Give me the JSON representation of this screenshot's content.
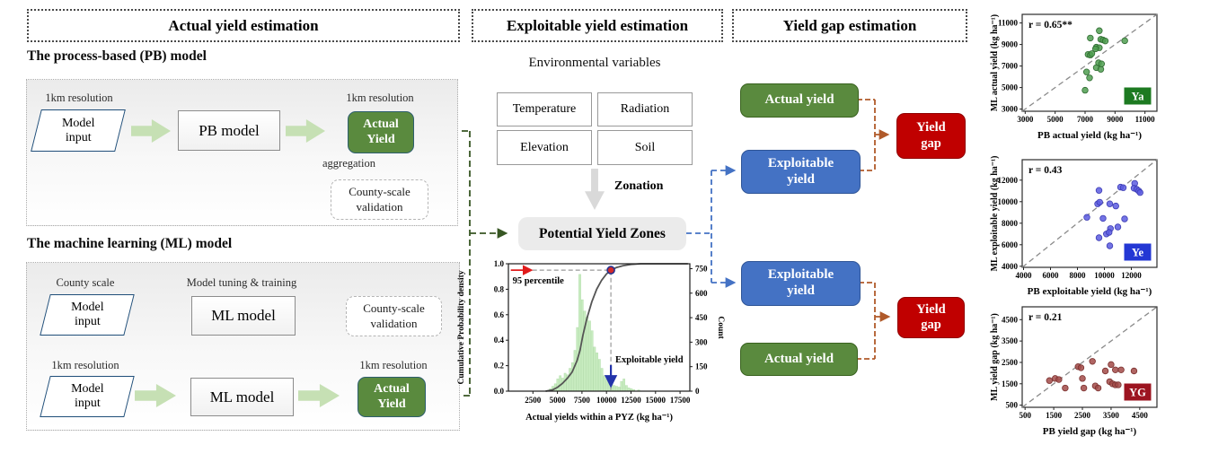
{
  "palette": {
    "green_box": "#5a8a3e",
    "green_box_border_left": "#2e5f6e",
    "green_box_border_right": "#39621f",
    "blue_box": "#4472c4",
    "blue_box_border": "#2f5597",
    "red_box": "#c00000",
    "red_box_border": "#900000",
    "flow_arrow": "#c6e0b4",
    "dash_green": "#375623",
    "dash_blue": "#4472c4",
    "dash_brown": "#b05a2a",
    "gray_arrow": "#808080"
  },
  "headers": {
    "actual": "Actual yield estimation",
    "exploitable": "Exploitable yield estimation",
    "yield_gap": "Yield gap estimation"
  },
  "pb": {
    "heading": "The process-based (PB) model",
    "input_tag": "1km resolution",
    "input_line1": "Model",
    "input_line2": "input",
    "model": "PB model",
    "output_tag": "1km resolution",
    "output_line1": "Actual",
    "output_line2": "Yield",
    "aggregation_label": "aggregation",
    "validation_line1": "County-scale",
    "validation_line2": "validation"
  },
  "ml": {
    "heading": "The machine learning (ML) model",
    "row1_input_tag": "County scale",
    "input_line1": "Model",
    "input_line2": "input",
    "row1_model_tag": "Model tuning & training",
    "model1": "ML model",
    "validation_line1": "County-scale",
    "validation_line2": "validation",
    "row2_input_tag": "1km resolution",
    "model2": "ML model",
    "output_tag": "1km resolution",
    "output_line1": "Actual",
    "output_line2": "Yield"
  },
  "env": {
    "title": "Environmental variables",
    "boxes": [
      "Temperature",
      "Radiation",
      "Elevation",
      "Soil"
    ],
    "zonation": "Zonation",
    "pyz": "Potential Yield Zones"
  },
  "gap": {
    "g1_top": "Actual yield",
    "g1_bottom_line1": "Exploitable",
    "g1_bottom_line2": "yield",
    "g1_result_line1": "Yield",
    "g1_result_line2": "gap",
    "g2_top_line1": "Exploitable",
    "g2_top_line2": "yield",
    "g2_bottom": "Actual yield",
    "g2_result_line1": "Yield",
    "g2_result_line2": "gap"
  },
  "chart_data": [
    {
      "type": "histogram_cdf",
      "xlabel": "Actual yields within a PYZ (kg ha⁻¹)",
      "ylabel_left": "Cumulative Probability density",
      "ylabel_right": "Count",
      "xlim": [
        0,
        18500
      ],
      "xticks": [
        2500,
        5000,
        7500,
        10000,
        12500,
        15000,
        17500
      ],
      "ylim_left": [
        0,
        1.0
      ],
      "yticks_left": [
        "0.0",
        "0.2",
        "0.4",
        "0.6",
        "0.8",
        "1.0"
      ],
      "ylim_right": [
        0,
        780
      ],
      "yticks_right": [
        0,
        150,
        300,
        450,
        600,
        750
      ],
      "bin_width": 250,
      "bar_color": "#c8ecc0",
      "cdf_color": "#555555",
      "bars": [
        [
          4300,
          15
        ],
        [
          4550,
          30
        ],
        [
          4800,
          45
        ],
        [
          5050,
          75
        ],
        [
          5300,
          95
        ],
        [
          5550,
          80
        ],
        [
          5800,
          110
        ],
        [
          6050,
          100
        ],
        [
          6300,
          140
        ],
        [
          6550,
          175
        ],
        [
          6800,
          250
        ],
        [
          7050,
          390
        ],
        [
          7300,
          715
        ],
        [
          7550,
          560
        ],
        [
          7800,
          490
        ],
        [
          8050,
          455
        ],
        [
          8300,
          430
        ],
        [
          8550,
          370
        ],
        [
          8800,
          270
        ],
        [
          9050,
          235
        ],
        [
          9300,
          195
        ],
        [
          9550,
          140
        ],
        [
          9800,
          95
        ],
        [
          10050,
          75
        ],
        [
          10300,
          60
        ],
        [
          10550,
          45
        ],
        [
          10800,
          35
        ],
        [
          11050,
          30
        ],
        [
          11300,
          25
        ],
        [
          11550,
          60
        ],
        [
          11800,
          75
        ],
        [
          12050,
          35
        ],
        [
          12300,
          20
        ],
        [
          12550,
          15
        ],
        [
          12800,
          10
        ],
        [
          13300,
          8
        ]
      ],
      "cdf": [
        [
          3800,
          0
        ],
        [
          4500,
          0.01
        ],
        [
          5000,
          0.03
        ],
        [
          5500,
          0.06
        ],
        [
          6000,
          0.1
        ],
        [
          6500,
          0.15
        ],
        [
          7000,
          0.24
        ],
        [
          7300,
          0.32
        ],
        [
          7600,
          0.44
        ],
        [
          8000,
          0.57
        ],
        [
          8500,
          0.7
        ],
        [
          9000,
          0.8
        ],
        [
          9500,
          0.87
        ],
        [
          10000,
          0.92
        ],
        [
          10450,
          0.95
        ],
        [
          11000,
          0.97
        ],
        [
          11700,
          0.985
        ],
        [
          12500,
          0.995
        ],
        [
          13500,
          1.0
        ],
        [
          18300,
          1.0
        ]
      ],
      "annotations": {
        "percentile_text": "95 percentile",
        "percentile_y": 0.95,
        "exploitable_text": "Exploitable yield",
        "exploitable_x": 10450,
        "red": "#e01b1b",
        "blue": "#2233aa",
        "marker_fill": "#d42a2a",
        "marker_ring": "#24318f"
      }
    },
    {
      "type": "scatter",
      "r_label": "r = 0.65**",
      "badge": "Ya",
      "badge_color": "#1d7a21",
      "dot_fill": "#4f9d50",
      "dot_stroke": "#2f6b31",
      "xlabel": "PB actual yield (kg ha⁻¹)",
      "ylabel": "ML actual yield (kg ha⁻¹)",
      "lim": [
        2800,
        11800
      ],
      "ticks": [
        3000,
        5000,
        7000,
        9000,
        11000
      ],
      "points": [
        [
          7000,
          4750
        ],
        [
          7300,
          5900
        ],
        [
          7100,
          6450
        ],
        [
          7750,
          6850
        ],
        [
          8050,
          6700
        ],
        [
          7900,
          7300
        ],
        [
          8100,
          7200
        ],
        [
          7200,
          8080
        ],
        [
          7350,
          8020
        ],
        [
          7450,
          8150
        ],
        [
          7750,
          8750
        ],
        [
          7950,
          8700
        ],
        [
          7700,
          8600
        ],
        [
          7350,
          9600
        ],
        [
          8050,
          9480
        ],
        [
          8200,
          9420
        ],
        [
          8350,
          9330
        ],
        [
          9650,
          9350
        ],
        [
          7950,
          10280
        ]
      ]
    },
    {
      "type": "scatter",
      "r_label": "r = 0.43",
      "badge": "Ye",
      "badge_color": "#2337d4",
      "dot_fill": "#5c5ce0",
      "dot_stroke": "#3c3cb4",
      "xlabel": "PB exploitable yield (kg ha⁻¹)",
      "ylabel": "ML exploitable yield (kg ha⁻¹)",
      "lim": [
        3900,
        13900
      ],
      "ticks": [
        4000,
        6000,
        8000,
        10000,
        12000
      ],
      "points": [
        [
          9600,
          11050
        ],
        [
          11200,
          11350
        ],
        [
          11400,
          11300
        ],
        [
          12250,
          11700
        ],
        [
          12200,
          11250
        ],
        [
          12400,
          11150
        ],
        [
          12550,
          11000
        ],
        [
          12650,
          10850
        ],
        [
          9500,
          9800
        ],
        [
          9650,
          9950
        ],
        [
          10400,
          9800
        ],
        [
          10850,
          9600
        ],
        [
          8700,
          8550
        ],
        [
          9900,
          8450
        ],
        [
          11500,
          8400
        ],
        [
          11000,
          7650
        ],
        [
          10450,
          7500
        ],
        [
          10150,
          7000
        ],
        [
          10350,
          7150
        ],
        [
          9600,
          6650
        ],
        [
          10400,
          5900
        ]
      ]
    },
    {
      "type": "scatter",
      "r_label": "r = 0.21",
      "badge": "YG",
      "badge_color": "#9c1420",
      "dot_fill": "#a24a48",
      "dot_stroke": "#7a312f",
      "xlabel": "PB yield gap (kg ha⁻¹)",
      "ylabel": "ML yield gap (kg ha⁻¹)",
      "lim": [
        400,
        5100
      ],
      "ticks": [
        500,
        1500,
        2500,
        3500,
        4500
      ],
      "points": [
        [
          1350,
          1650
        ],
        [
          1550,
          1750
        ],
        [
          1680,
          1700
        ],
        [
          1900,
          1300
        ],
        [
          2350,
          2300
        ],
        [
          2450,
          2250
        ],
        [
          2500,
          1750
        ],
        [
          2550,
          1300
        ],
        [
          2850,
          2550
        ],
        [
          2950,
          1400
        ],
        [
          3050,
          1300
        ],
        [
          3300,
          2100
        ],
        [
          3500,
          2400
        ],
        [
          3450,
          1600
        ],
        [
          3550,
          1500
        ],
        [
          3650,
          1450
        ],
        [
          3750,
          1450
        ],
        [
          3650,
          2150
        ],
        [
          3850,
          2150
        ],
        [
          4300,
          2100
        ]
      ]
    }
  ]
}
